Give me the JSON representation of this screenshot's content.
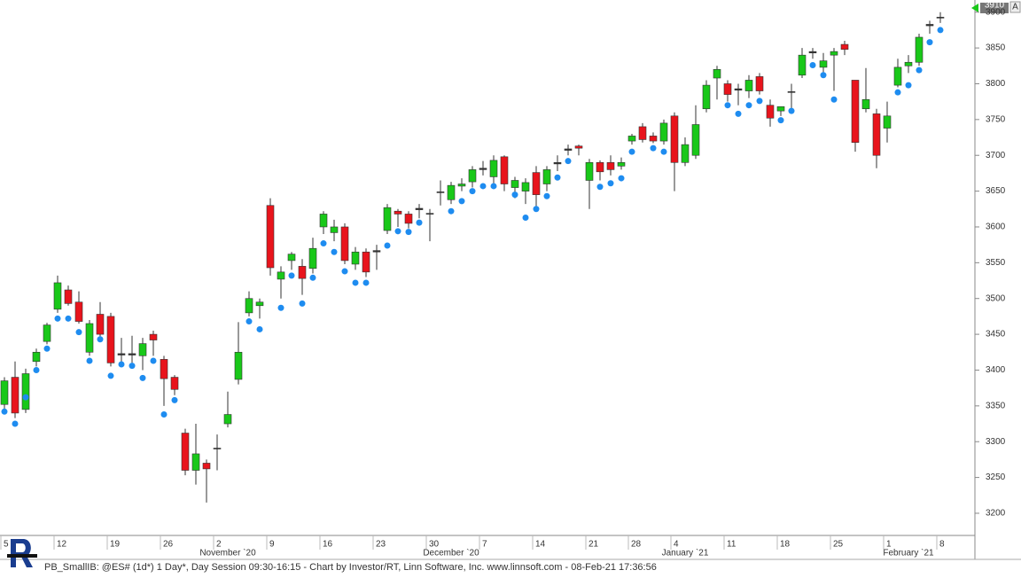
{
  "chart_data": {
    "type": "candlestick",
    "categories": [
      "5",
      null,
      null,
      null,
      null,
      "12",
      null,
      null,
      null,
      null,
      "19",
      null,
      null,
      null,
      null,
      "26",
      null,
      null,
      null,
      null,
      "2",
      null,
      null,
      null,
      null,
      "9",
      null,
      null,
      null,
      null,
      "16",
      null,
      null,
      null,
      null,
      "23",
      null,
      null,
      null,
      null,
      "30",
      null,
      null,
      null,
      null,
      "7",
      null,
      null,
      null,
      null,
      "14",
      null,
      null,
      null,
      null,
      "21",
      null,
      null,
      null,
      "28",
      null,
      null,
      null,
      "4",
      null,
      null,
      null,
      null,
      "11",
      null,
      null,
      null,
      null,
      "18",
      null,
      null,
      null,
      null,
      "25",
      null,
      null,
      null,
      null,
      "1",
      null,
      null,
      null,
      null,
      "8"
    ],
    "month_labels": [
      "November `20",
      "December `20",
      "January `21",
      "February `21"
    ],
    "open": [
      3352,
      3390,
      3345,
      3412,
      3440,
      3485,
      3512,
      3495,
      3425,
      3478,
      3475,
      3423,
      3421,
      3420,
      3450,
      3415,
      3390,
      3312,
      3260,
      3270,
      3290,
      3325,
      3387,
      3480,
      3490,
      3630,
      3527,
      3553,
      3545,
      3542,
      3600,
      3592,
      3600,
      3548,
      3565,
      3565,
      3595,
      3622,
      3618,
      3624,
      3618,
      3648,
      3638,
      3657,
      3663,
      3680,
      3670,
      3698,
      3655,
      3650,
      3676,
      3660,
      3688,
      3707,
      3713,
      3665,
      3690,
      3690,
      3685,
      3720,
      3740,
      3727,
      3720,
      3755,
      3690,
      3700,
      3765,
      3808,
      3800,
      3791,
      3790,
      3810,
      3770,
      3762,
      3788,
      3812,
      3845,
      3823,
      3840,
      3855,
      3805,
      3765,
      3758,
      3738,
      3798,
      3825,
      3830,
      3881,
      3892
    ],
    "high": [
      3390,
      3412,
      3402,
      3430,
      3466,
      3532,
      3518,
      3510,
      3470,
      3495,
      3480,
      3445,
      3448,
      3445,
      3455,
      3420,
      3393,
      3318,
      3325,
      3275,
      3310,
      3370,
      3467,
      3510,
      3500,
      3640,
      3545,
      3565,
      3555,
      3585,
      3622,
      3610,
      3605,
      3572,
      3570,
      3575,
      3632,
      3625,
      3622,
      3632,
      3625,
      3665,
      3663,
      3668,
      3685,
      3692,
      3700,
      3700,
      3670,
      3668,
      3685,
      3685,
      3700,
      3715,
      3715,
      3695,
      3693,
      3700,
      3697,
      3730,
      3745,
      3732,
      3750,
      3760,
      3725,
      3770,
      3805,
      3825,
      3805,
      3800,
      3812,
      3815,
      3778,
      3768,
      3800,
      3850,
      3850,
      3843,
      3850,
      3860,
      3805,
      3822,
      3765,
      3775,
      3835,
      3840,
      3870,
      3888,
      3900
    ],
    "low": [
      3345,
      3333,
      3340,
      3405,
      3436,
      3480,
      3490,
      3465,
      3420,
      3445,
      3405,
      3405,
      3410,
      3400,
      3420,
      3350,
      3365,
      3253,
      3240,
      3215,
      3260,
      3320,
      3380,
      3475,
      3472,
      3532,
      3500,
      3540,
      3505,
      3535,
      3590,
      3580,
      3548,
      3540,
      3530,
      3540,
      3590,
      3600,
      3598,
      3612,
      3580,
      3630,
      3632,
      3650,
      3655,
      3672,
      3655,
      3650,
      3640,
      3632,
      3625,
      3650,
      3678,
      3700,
      3700,
      3625,
      3665,
      3672,
      3680,
      3715,
      3718,
      3717,
      3715,
      3650,
      3685,
      3695,
      3760,
      3778,
      3775,
      3770,
      3780,
      3785,
      3740,
      3755,
      3760,
      3808,
      3835,
      3808,
      3790,
      3840,
      3705,
      3760,
      3682,
      3718,
      3795,
      3815,
      3825,
      3870,
      3885
    ],
    "close": [
      3385,
      3340,
      3395,
      3425,
      3463,
      3522,
      3493,
      3468,
      3465,
      3450,
      3410,
      3421,
      3423,
      3437,
      3442,
      3388,
      3373,
      3260,
      3283,
      3262,
      3291,
      3338,
      3425,
      3500,
      3495,
      3543,
      3537,
      3562,
      3528,
      3570,
      3618,
      3600,
      3553,
      3565,
      3537,
      3567,
      3627,
      3618,
      3605,
      3626,
      3619,
      3649,
      3658,
      3660,
      3680,
      3682,
      3693,
      3660,
      3665,
      3662,
      3645,
      3680,
      3690,
      3709,
      3710,
      3690,
      3677,
      3680,
      3690,
      3727,
      3722,
      3720,
      3745,
      3690,
      3715,
      3743,
      3798,
      3820,
      3785,
      3793,
      3805,
      3790,
      3752,
      3768,
      3789,
      3840,
      3843,
      3832,
      3845,
      3848,
      3718,
      3778,
      3700,
      3755,
      3823,
      3830,
      3865,
      3883,
      3893
    ],
    "dots": [
      3342,
      3325,
      3362,
      3400,
      3430,
      3472,
      3472,
      3453,
      3413,
      3443,
      3392,
      3408,
      3406,
      3389,
      3413,
      3338,
      3358,
      null,
      null,
      null,
      null,
      null,
      null,
      3468,
      3457,
      null,
      3487,
      3532,
      3493,
      3529,
      3577,
      3565,
      3538,
      3522,
      3522,
      null,
      3574,
      3594,
      3593,
      3606,
      null,
      null,
      3622,
      3636,
      3650,
      3657,
      3657,
      null,
      3645,
      3613,
      3625,
      3643,
      3669,
      3692,
      null,
      null,
      3656,
      3661,
      3668,
      3705,
      null,
      3710,
      3705,
      null,
      null,
      null,
      null,
      null,
      3770,
      3758,
      3770,
      3776,
      null,
      3749,
      3762,
      null,
      3826,
      3812,
      3778,
      null,
      null,
      null,
      null,
      null,
      3788,
      3798,
      3819,
      3858,
      3875
    ],
    "up_color": "#19c819",
    "down_color": "#e8141c",
    "doji_color": "#333333",
    "dot_color": "#1e8cf0",
    "ylim": [
      3169,
      3917
    ],
    "yticks": [
      3200,
      3250,
      3300,
      3350,
      3400,
      3450,
      3500,
      3550,
      3600,
      3650,
      3700,
      3750,
      3800,
      3850,
      3900
    ],
    "last_price": 3910,
    "corner_button": "A",
    "footer": "PB_SmallIB: @ES# (1d*) 1 Day*, Day Session 09:30-16:15 - Chart by Investor/RT, Linn Software, Inc. www.linnsoft.com - 08-Feb-21 17:36:56"
  }
}
